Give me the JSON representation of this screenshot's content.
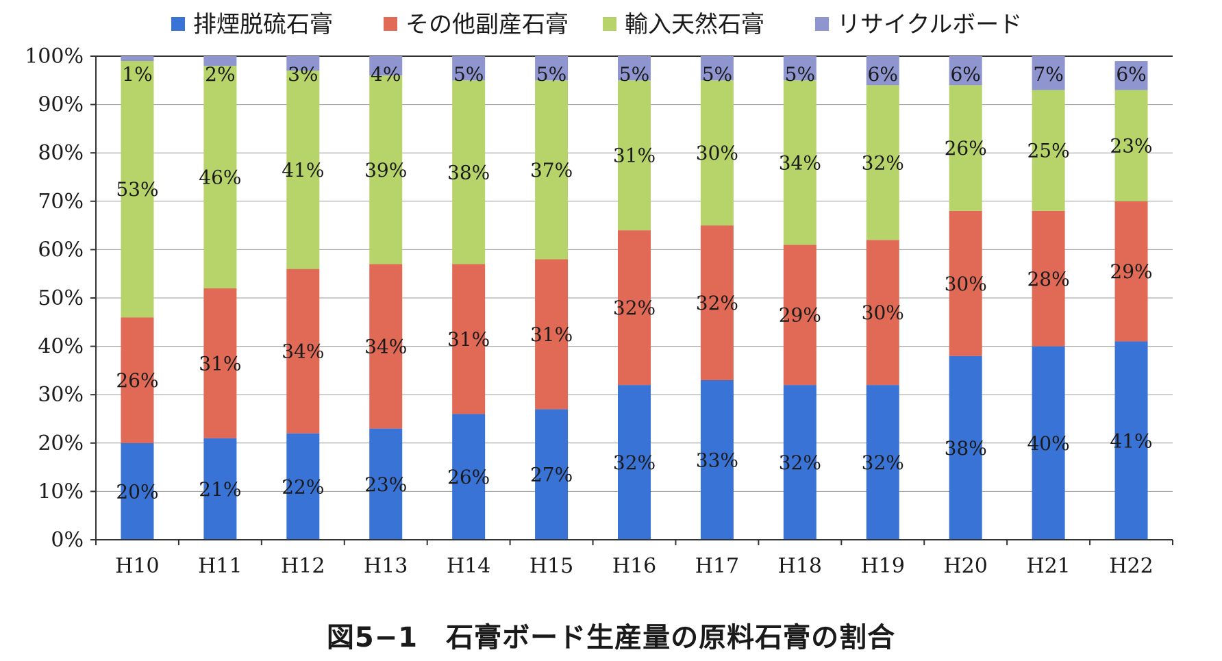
{
  "caption": "図5−1　石膏ボード生産量の原料石膏の割合",
  "chart_data": {
    "type": "bar",
    "stacked": true,
    "categories": [
      "H10",
      "H11",
      "H12",
      "H13",
      "H14",
      "H15",
      "H16",
      "H17",
      "H18",
      "H19",
      "H20",
      "H21",
      "H22"
    ],
    "series": [
      {
        "name": "排煙脱硫石膏",
        "color": "#3a73d6",
        "values": [
          20,
          21,
          22,
          23,
          26,
          27,
          32,
          33,
          32,
          32,
          38,
          40,
          41
        ]
      },
      {
        "name": "その他副産石膏",
        "color": "#e06a55",
        "values": [
          26,
          31,
          34,
          34,
          31,
          31,
          32,
          32,
          29,
          30,
          30,
          28,
          29
        ]
      },
      {
        "name": "輸入天然石膏",
        "color": "#b7d46b",
        "values": [
          53,
          46,
          41,
          39,
          38,
          37,
          31,
          30,
          34,
          32,
          26,
          25,
          23
        ]
      },
      {
        "name": "リサイクルボード",
        "color": "#8f96cf",
        "values": [
          1,
          2,
          3,
          4,
          5,
          5,
          5,
          5,
          5,
          6,
          6,
          7,
          6
        ]
      }
    ],
    "ylim": [
      0,
      100
    ],
    "yticks": [
      "0%",
      "10%",
      "20%",
      "30%",
      "40%",
      "50%",
      "60%",
      "70%",
      "80%",
      "90%",
      "100%"
    ],
    "legend_position": "top",
    "grid": true,
    "data_labels": true,
    "label_suffix": "%"
  }
}
